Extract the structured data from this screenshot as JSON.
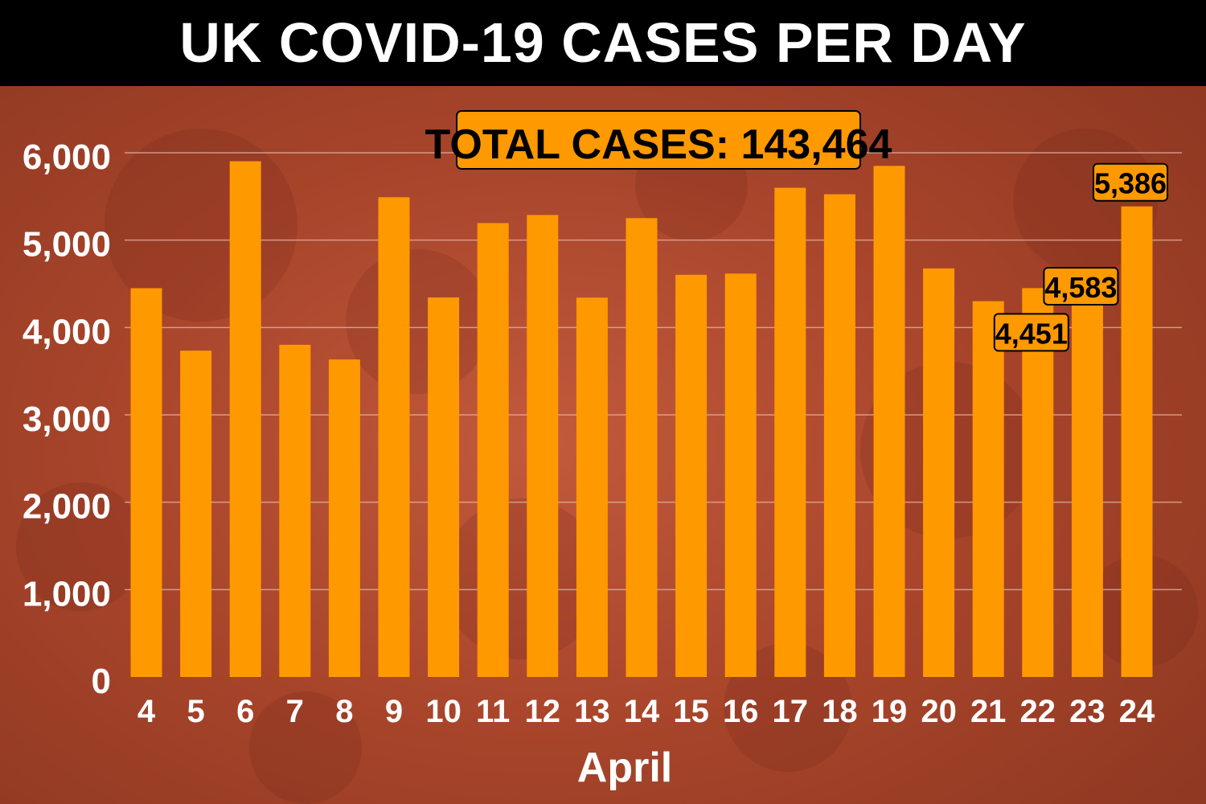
{
  "colors": {
    "bar": "#ff9900",
    "title_bg": "#000000",
    "title_text": "#ffffff",
    "label_box": "#ff9900",
    "label_text": "#000000",
    "axis_text": "#ffffff",
    "grid": "#e6b8a8"
  },
  "chart_data": {
    "type": "bar",
    "title": "UK COVID-19 CASES PER DAY",
    "xlabel": "April",
    "ylabel": "",
    "ylim": [
      0,
      6000
    ],
    "yticks": [
      0,
      1000,
      2000,
      3000,
      4000,
      5000,
      6000
    ],
    "ytick_labels": [
      "0",
      "1,000",
      "2,000",
      "3,000",
      "4,000",
      "5,000",
      "6,000"
    ],
    "grid": true,
    "categories": [
      "4",
      "5",
      "6",
      "7",
      "8",
      "9",
      "10",
      "11",
      "12",
      "13",
      "14",
      "15",
      "16",
      "17",
      "18",
      "19",
      "20",
      "21",
      "22",
      "23",
      "24"
    ],
    "values": [
      4450,
      3735,
      5903,
      3802,
      3634,
      5491,
      4344,
      5195,
      5288,
      4342,
      5252,
      4603,
      4617,
      5599,
      5525,
      5850,
      4676,
      4301,
      4451,
      4583,
      5386
    ],
    "annotation_total": "TOTAL CASES:  143,464",
    "data_labels": [
      {
        "category": "22",
        "text": "4,451"
      },
      {
        "category": "23",
        "text": "4,583"
      },
      {
        "category": "24",
        "text": "5,386"
      }
    ]
  }
}
